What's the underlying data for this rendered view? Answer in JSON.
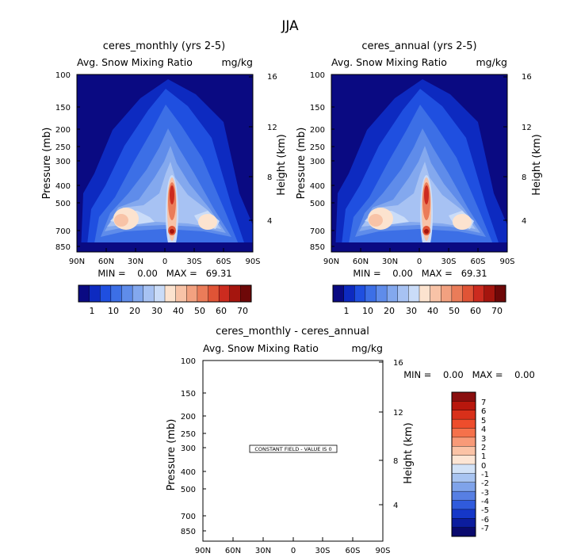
{
  "figure": {
    "title": "JJA"
  },
  "chart_data": [
    {
      "type": "heatmap",
      "title": "ceres_monthly (yrs 2-5)",
      "subtitle_left": "Avg. Snow Mixing Ratio",
      "subtitle_right": "mg/kg",
      "ylabel": "Pressure (mb)",
      "ylabel_right": "Height (km)",
      "x_ticks": [
        "90N",
        "60N",
        "30N",
        "0",
        "30S",
        "60S",
        "90S"
      ],
      "y_ticks": [
        "100",
        "150",
        "200",
        "250",
        "300",
        "400",
        "500",
        "700",
        "850"
      ],
      "y_ticks_right": [
        "16",
        "12",
        "8",
        "4"
      ],
      "ylim": [
        100,
        1000
      ],
      "stats": "MIN =    0.00   MAX =   69.31",
      "min": 0.0,
      "max": 69.31,
      "colorbar_labels": [
        "1",
        "10",
        "20",
        "30",
        "40",
        "50",
        "60",
        "70"
      ],
      "colorbar_colors": [
        "#0a0a82",
        "#0d2ac0",
        "#1f4fe0",
        "#3c6fe6",
        "#5f8cea",
        "#83a8ee",
        "#a7c2f3",
        "#cadcf8",
        "#fce3cf",
        "#f8c3a7",
        "#f2a180",
        "#ea7c59",
        "#e05436",
        "#cc2b1f",
        "#a5150e",
        "#6e0808"
      ]
    },
    {
      "type": "heatmap",
      "title": "ceres_annual (yrs 2-5)",
      "subtitle_left": "Avg. Snow Mixing Ratio",
      "subtitle_right": "mg/kg",
      "ylabel": "Pressure (mb)",
      "ylabel_right": "Height (km)",
      "x_ticks": [
        "90N",
        "60N",
        "30N",
        "0",
        "30S",
        "60S",
        "90S"
      ],
      "y_ticks": [
        "100",
        "150",
        "200",
        "250",
        "300",
        "400",
        "500",
        "700",
        "850"
      ],
      "y_ticks_right": [
        "16",
        "12",
        "8",
        "4"
      ],
      "ylim": [
        100,
        1000
      ],
      "stats": "MIN =    0.00   MAX =   69.31",
      "min": 0.0,
      "max": 69.31,
      "colorbar_labels": [
        "1",
        "10",
        "20",
        "30",
        "40",
        "50",
        "60",
        "70"
      ],
      "colorbar_colors": [
        "#0a0a82",
        "#0d2ac0",
        "#1f4fe0",
        "#3c6fe6",
        "#5f8cea",
        "#83a8ee",
        "#a7c2f3",
        "#cadcf8",
        "#fce3cf",
        "#f8c3a7",
        "#f2a180",
        "#ea7c59",
        "#e05436",
        "#cc2b1f",
        "#a5150e",
        "#6e0808"
      ]
    },
    {
      "type": "heatmap",
      "title": "ceres_monthly - ceres_annual",
      "subtitle_left": "Avg. Snow Mixing Ratio",
      "subtitle_right": "mg/kg",
      "ylabel": "Pressure (mb)",
      "ylabel_right": "Height (km)",
      "x_ticks": [
        "90N",
        "60N",
        "30N",
        "0",
        "30S",
        "60S",
        "90S"
      ],
      "y_ticks": [
        "100",
        "150",
        "200",
        "250",
        "300",
        "400",
        "500",
        "700",
        "850"
      ],
      "y_ticks_right": [
        "16",
        "12",
        "8",
        "4"
      ],
      "ylim": [
        100,
        1000
      ],
      "stats": "MIN =    0.00   MAX =    0.00",
      "min": 0.0,
      "max": 0.0,
      "annotation": "CONSTANT FIELD - VALUE IS 0",
      "colorbar_labels": [
        "7",
        "6",
        "5",
        "4",
        "3",
        "2",
        "1",
        "0",
        "-1",
        "-2",
        "-3",
        "-4",
        "-5",
        "-6",
        "-7"
      ],
      "colorbar_colors": [
        "#8a0e0e",
        "#b8170d",
        "#d8301a",
        "#ee4d2c",
        "#f5714b",
        "#f89a78",
        "#fbc3a6",
        "#fde5d4",
        "#d2e2f7",
        "#a8c4f1",
        "#7fa3ea",
        "#577fe3",
        "#305bdc",
        "#1537c8",
        "#0c1d9e",
        "#0a0a6e"
      ]
    }
  ]
}
